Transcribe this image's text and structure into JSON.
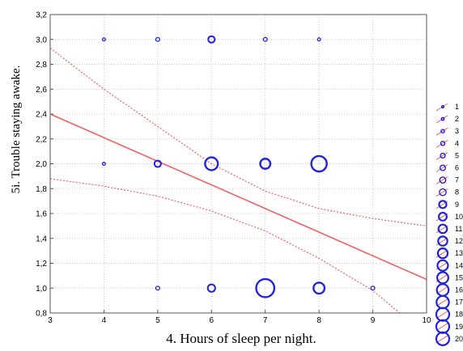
{
  "chart_data": {
    "type": "scatter",
    "xlabel": "4. Hours of sleep per night.",
    "ylabel": "5i. Trouble staying awake.",
    "xlim": [
      3,
      10
    ],
    "ylim": [
      0.8,
      3.2
    ],
    "x_ticks": [
      "3",
      "4",
      "5",
      "6",
      "7",
      "8",
      "9",
      "10"
    ],
    "y_ticks": [
      "0,8",
      "1,0",
      "1,2",
      "1,4",
      "1,6",
      "1,8",
      "2,0",
      "2,2",
      "2,4",
      "2,6",
      "2,8",
      "3,0",
      "3,2"
    ],
    "grid": true,
    "points": [
      {
        "x": 4,
        "y": 3.0,
        "count": 1
      },
      {
        "x": 5,
        "y": 3.0,
        "count": 2
      },
      {
        "x": 6,
        "y": 3.0,
        "count": 5
      },
      {
        "x": 7,
        "y": 3.0,
        "count": 2
      },
      {
        "x": 8,
        "y": 3.0,
        "count": 1
      },
      {
        "x": 4,
        "y": 2.0,
        "count": 1
      },
      {
        "x": 5,
        "y": 2.0,
        "count": 5
      },
      {
        "x": 6,
        "y": 2.0,
        "count": 12
      },
      {
        "x": 7,
        "y": 2.0,
        "count": 9
      },
      {
        "x": 8,
        "y": 2.0,
        "count": 15
      },
      {
        "x": 5,
        "y": 1.0,
        "count": 2
      },
      {
        "x": 6,
        "y": 1.0,
        "count": 6
      },
      {
        "x": 7,
        "y": 1.0,
        "count": 18
      },
      {
        "x": 8,
        "y": 1.0,
        "count": 10
      },
      {
        "x": 9,
        "y": 1.0,
        "count": 2
      }
    ],
    "regression_line": {
      "x": [
        3,
        10
      ],
      "y": [
        2.4,
        1.07
      ],
      "color": "#f06060"
    },
    "confidence_band_upper": {
      "x": [
        3,
        4,
        5,
        6,
        7,
        8,
        9,
        10
      ],
      "y": [
        2.93,
        2.6,
        2.3,
        2.0,
        1.78,
        1.64,
        1.56,
        1.5
      ]
    },
    "confidence_band_lower": {
      "x": [
        3,
        4,
        5,
        6,
        7,
        8,
        9,
        9.5
      ],
      "y": [
        1.88,
        1.82,
        1.74,
        1.62,
        1.46,
        1.24,
        0.98,
        0.8
      ]
    },
    "legend": {
      "position": "right",
      "labels": [
        "1",
        "2",
        "3",
        "4",
        "5",
        "6",
        "7",
        "8",
        "9",
        "10",
        "11",
        "12",
        "13",
        "14",
        "15",
        "16",
        "17",
        "18",
        "19",
        "20"
      ]
    },
    "colors": {
      "points": "#2222dd",
      "line": "#f06060",
      "grid": "#cccccc"
    }
  }
}
